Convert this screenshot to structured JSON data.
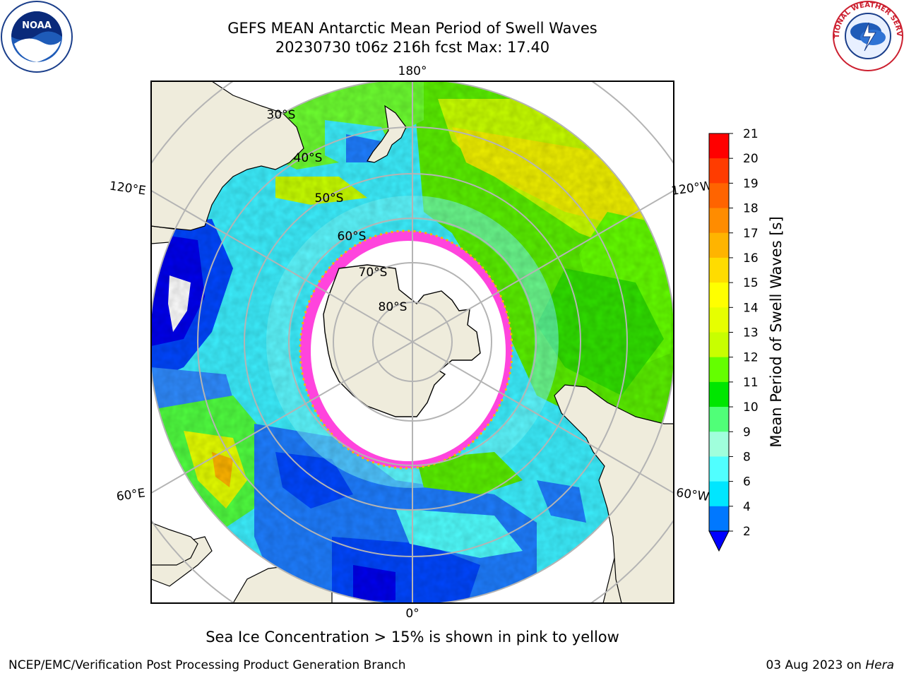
{
  "title": {
    "line1": "GEFS MEAN Antarctic Mean Period of Swell Waves",
    "line2": "20230730 t06z 216h fcst   Max: 17.40"
  },
  "logos": {
    "left": {
      "icon": "noaa-logo",
      "text": "NOAA"
    },
    "right": {
      "icon": "nws-logo",
      "text": "NATIONAL WEATHER SERVICE"
    }
  },
  "map": {
    "projection": "south-polar-stereographic",
    "longitude_labels": {
      "top": "180°",
      "bottom": "0°",
      "left_upper": "120°E",
      "left_lower": "60°E",
      "right_upper": "120°W",
      "right_lower": "60°W"
    },
    "latitude_labels": [
      "30°S",
      "40°S",
      "50°S",
      "60°S",
      "70°S",
      "80°S"
    ],
    "land_color": "#efecdc",
    "sea_ice_color": "#ff44dd",
    "grid_color": "#b4b4b4"
  },
  "colorbar": {
    "label": "Mean Period of Swell Waves [s]",
    "ticks": [
      "21",
      "20",
      "19",
      "18",
      "17",
      "16",
      "15",
      "14",
      "13",
      "12",
      "11",
      "10",
      "9",
      "8",
      "6",
      "4",
      "2"
    ],
    "colors": [
      "#ff0000",
      "#ff3c00",
      "#ff6400",
      "#ff8c00",
      "#ffb400",
      "#ffdc00",
      "#ffff00",
      "#e6ff00",
      "#c8ff00",
      "#64ff00",
      "#00e600",
      "#50ff78",
      "#a0ffdc",
      "#50ffff",
      "#00e6ff",
      "#0078ff"
    ],
    "extend_color": "#0000ff"
  },
  "note": "Sea Ice Concentration > 15% is shown in pink to yellow",
  "footer": {
    "left": "NCEP/EMC/Verification Post Processing Product Generation Branch",
    "right_date": "03 Aug 2023 on ",
    "right_host": "Hera"
  }
}
